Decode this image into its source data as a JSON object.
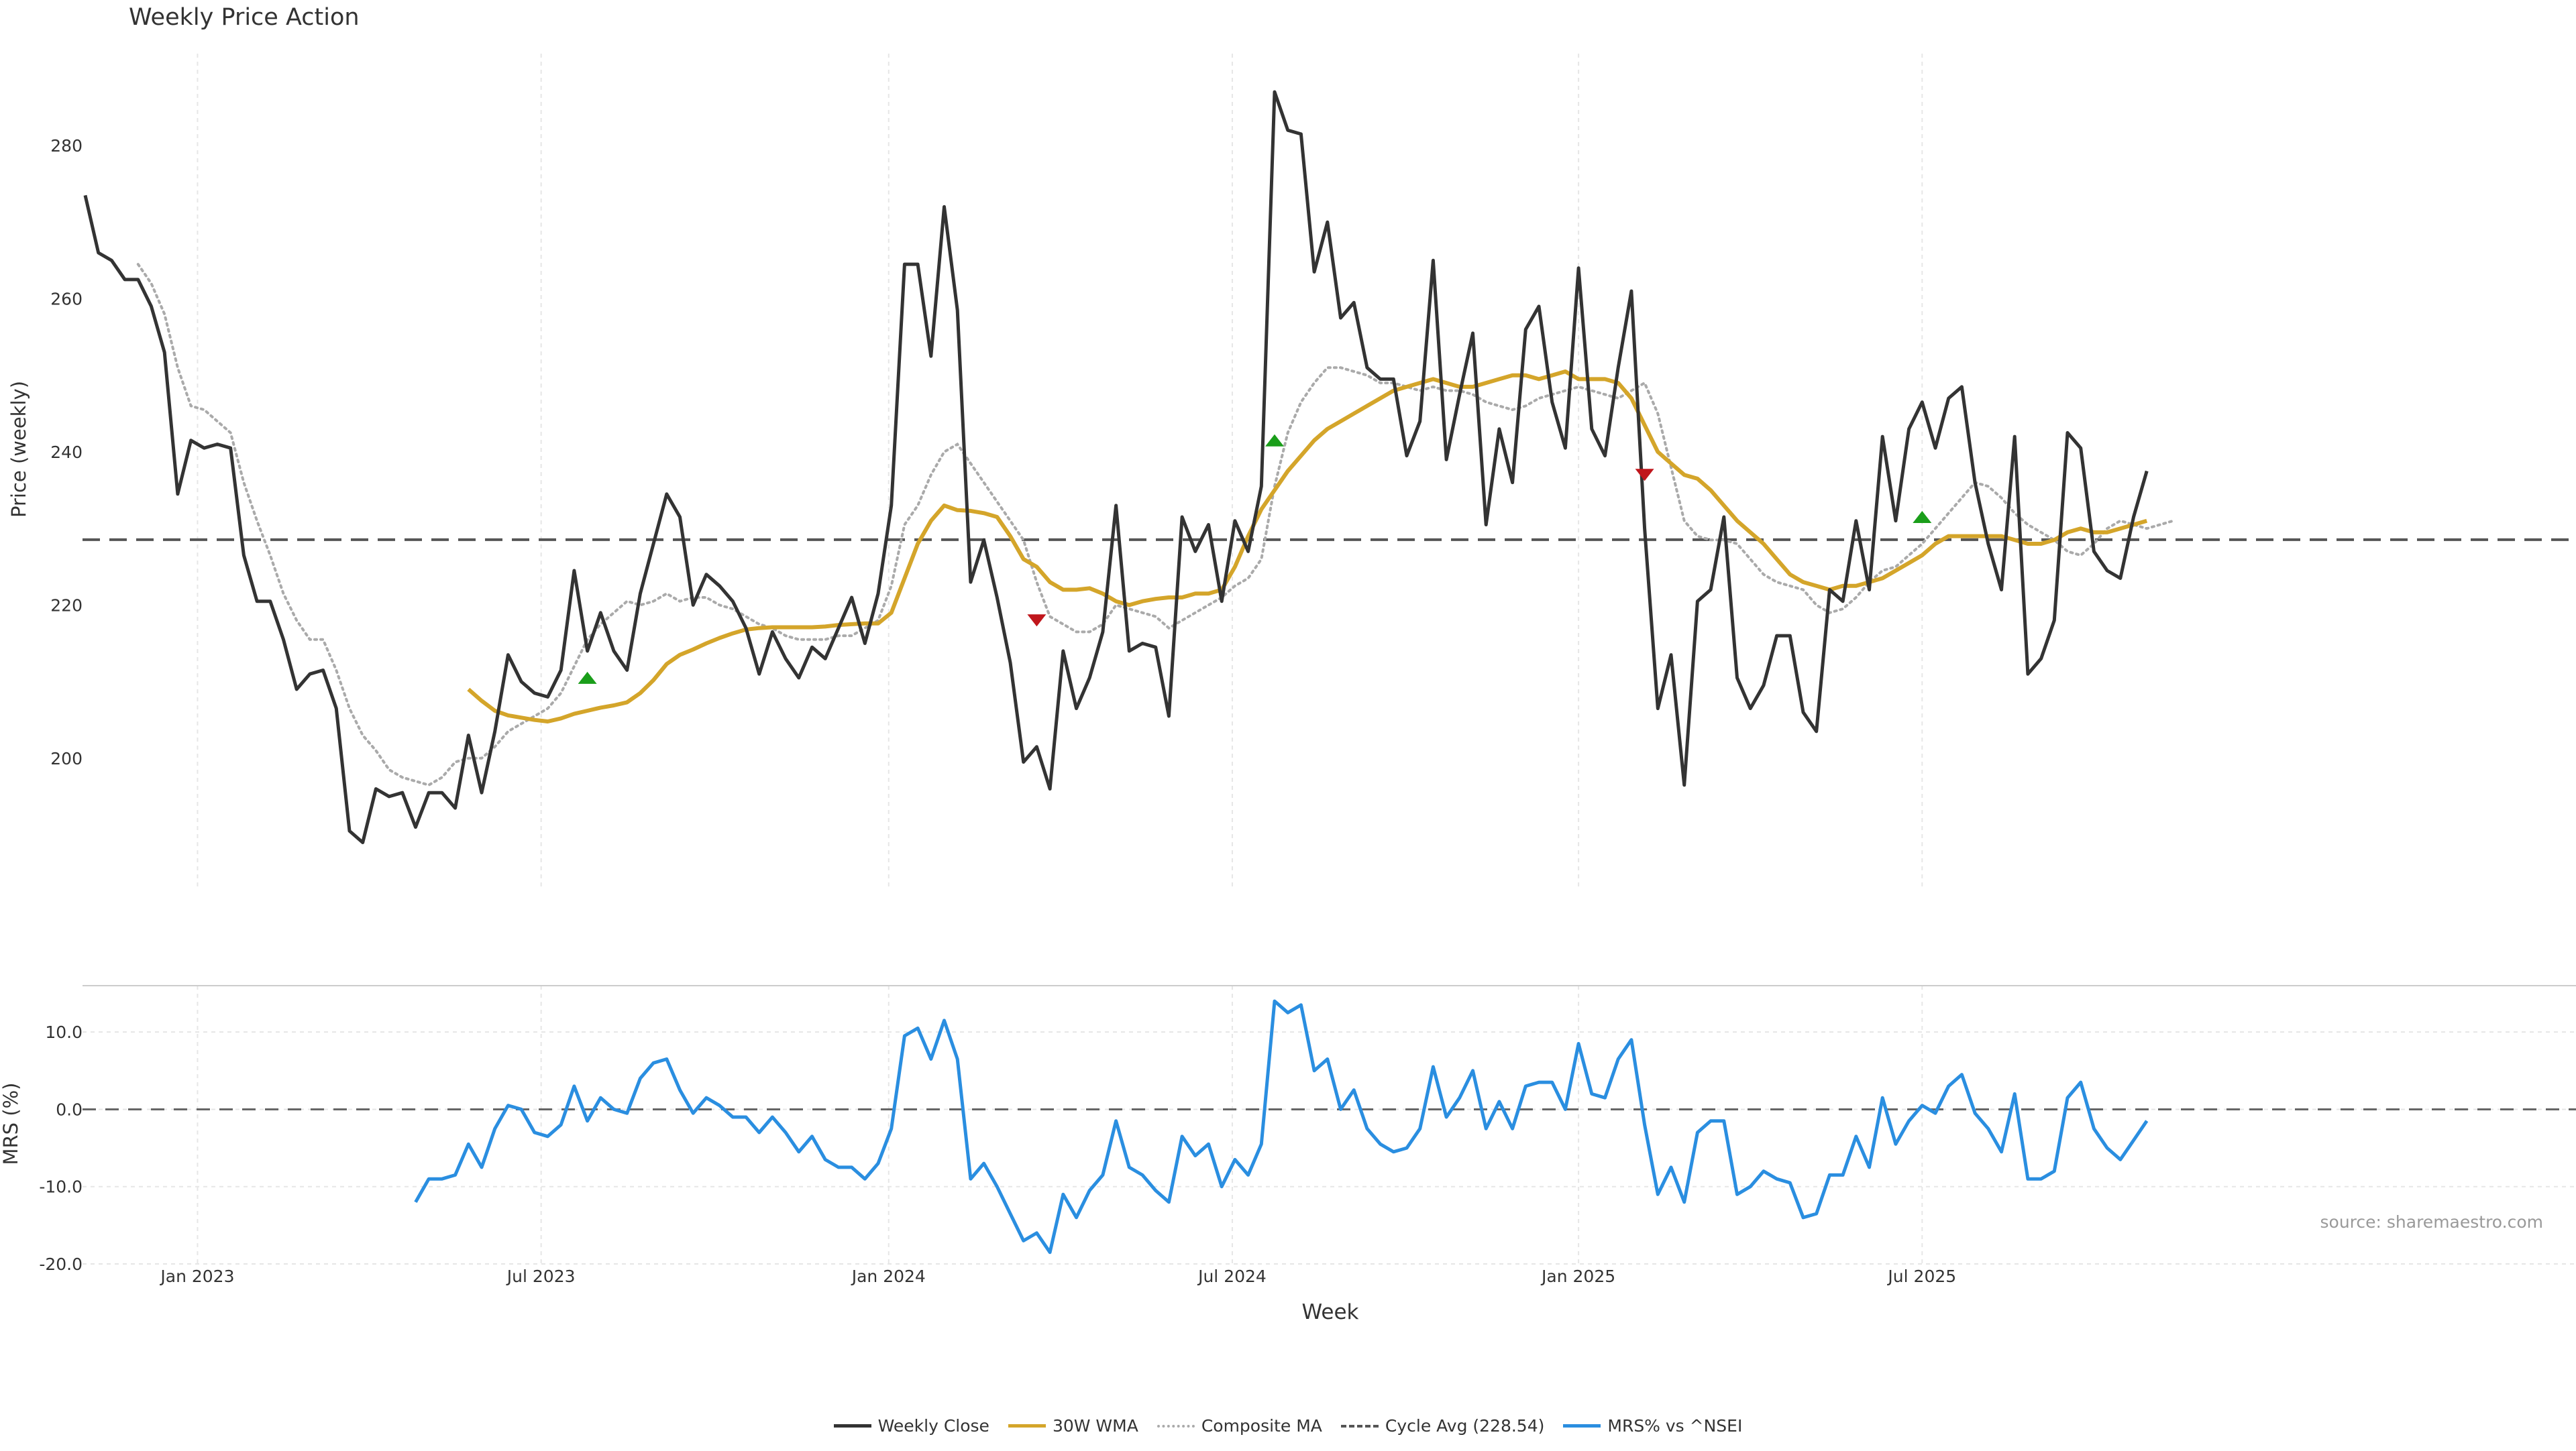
{
  "colors": {
    "close": "#333333",
    "wma": "#d4a52a",
    "composite": "#aaaaaa",
    "cycle": "#555555",
    "mrs": "#2a8ee0",
    "buy": "#1a9e1a",
    "sell": "#c0161c",
    "grid": "#e6e6e6"
  },
  "chart_data": [
    {
      "type": "line",
      "title": "Weekly Price Action",
      "ylabel": "Price (weekly)",
      "xlabel": "Week",
      "ylim": [
        183,
        292
      ],
      "yticks": [
        "200",
        "220",
        "240",
        "260",
        "280"
      ],
      "series": [
        {
          "name": "Weekly Close",
          "values": [
            273.5,
            266,
            265,
            262.5,
            262.5,
            259,
            253,
            234.5,
            241.5,
            240.5,
            241,
            240.5,
            226.5,
            220.5,
            220.5,
            215.5,
            209,
            211,
            211.5,
            206.5,
            190.5,
            189,
            196,
            195,
            195.5,
            191,
            195.5,
            195.5,
            193.5,
            203,
            195.5,
            203.5,
            213.5,
            210,
            208.5,
            208,
            211.5,
            224.5,
            214,
            219,
            214,
            211.5,
            221.5,
            228,
            234.5,
            231.5,
            220,
            224,
            222.5,
            220.5,
            217,
            211,
            216.5,
            213,
            210.5,
            214.5,
            213,
            217,
            221,
            215,
            221.5,
            233,
            264.5,
            264.5,
            252.5,
            272,
            258.5,
            223,
            228.5,
            221,
            212.5,
            199.5,
            201.5,
            196,
            214,
            206.5,
            210.5,
            216.5,
            233,
            214,
            215,
            214.5,
            205.5,
            231.5,
            227,
            230.5,
            220.5,
            231,
            227,
            235.5,
            287,
            282,
            281.5,
            263.5,
            270,
            257.5,
            259.5,
            251,
            249.5,
            249.5,
            239.5,
            244,
            265,
            239,
            247.5,
            255.5,
            230.5,
            243,
            236,
            256,
            259,
            246.5,
            240.5,
            264,
            243,
            239.5,
            251,
            261,
            230,
            206.5,
            213.5,
            196.5,
            220.5,
            222,
            231.5,
            210.5,
            206.5,
            209.5,
            216,
            216,
            206,
            203.5,
            222,
            220.5,
            231,
            222,
            242,
            231,
            243,
            246.5,
            240.5,
            247,
            248.5,
            236,
            228,
            222,
            242,
            211,
            213,
            218,
            242.5,
            240.5,
            227,
            224.5,
            223.5,
            231.5,
            237.5
          ]
        },
        {
          "name": "30W WMA",
          "values": [
            null,
            null,
            null,
            null,
            null,
            null,
            null,
            null,
            null,
            null,
            null,
            null,
            null,
            null,
            null,
            null,
            null,
            null,
            null,
            null,
            null,
            null,
            null,
            null,
            null,
            null,
            null,
            null,
            null,
            209,
            207.5,
            206.2,
            205.6,
            205.3,
            205,
            204.8,
            205.2,
            205.8,
            206.2,
            206.6,
            206.9,
            207.3,
            208.5,
            210.2,
            212.3,
            213.5,
            214.2,
            215,
            215.7,
            216.3,
            216.8,
            217,
            217.1,
            217.1,
            217.1,
            217.1,
            217.2,
            217.4,
            217.5,
            217.6,
            217.6,
            219,
            223.5,
            228,
            231,
            233,
            232.4,
            232.3,
            232,
            231.5,
            229,
            226,
            225,
            223,
            222,
            222,
            222.2,
            221.5,
            220.5,
            220,
            220.5,
            220.8,
            221,
            221,
            221.5,
            221.5,
            222,
            225,
            229,
            232.5,
            235,
            237.5,
            239.5,
            241.5,
            243,
            244,
            245,
            246,
            247,
            248,
            248.5,
            249,
            249.5,
            249,
            248.5,
            248.5,
            249,
            249.5,
            250,
            250,
            249.5,
            250,
            250.5,
            249.5,
            249.5,
            249.5,
            249,
            247,
            243.5,
            240,
            238.5,
            237,
            236.5,
            235,
            233,
            231,
            229.5,
            228,
            226,
            224,
            223,
            222.5,
            222,
            222.5,
            222.5,
            223,
            223.5,
            224.5,
            225.5,
            226.5,
            228,
            229,
            229,
            229,
            229,
            229,
            228.5,
            228,
            228,
            228.5,
            229.5,
            230,
            229.5,
            229.5,
            230,
            230.5,
            231
          ]
        },
        {
          "name": "Composite MA",
          "values": [
            null,
            null,
            null,
            null,
            264.5,
            262,
            258,
            251,
            246,
            245.5,
            244,
            242.5,
            236,
            231,
            226.5,
            221.5,
            218,
            215.5,
            215.5,
            211.5,
            206.5,
            203,
            201,
            198.5,
            197.5,
            197,
            196.5,
            197.5,
            199.5,
            200,
            200,
            201.5,
            203.5,
            204.5,
            205.5,
            206.5,
            208.5,
            212,
            215.5,
            217.5,
            219,
            220.5,
            220,
            220.5,
            221.5,
            220.5,
            221,
            221,
            220,
            219.5,
            218.5,
            217.5,
            217,
            216,
            215.5,
            215.5,
            215.5,
            216,
            216,
            217,
            218,
            222.5,
            230.5,
            233,
            237,
            240,
            241,
            238.5,
            236,
            233.5,
            231,
            228.5,
            223,
            218.5,
            217.5,
            216.5,
            216.5,
            217.5,
            220,
            219.5,
            219,
            218.5,
            217,
            218,
            219,
            220,
            221,
            222.5,
            223.5,
            226,
            235.5,
            242.5,
            246.5,
            249,
            251,
            251,
            250.5,
            250,
            249,
            249,
            248.5,
            248,
            248.5,
            248,
            248,
            247.5,
            246.5,
            246,
            245.5,
            246,
            247,
            247.5,
            248,
            248.5,
            248,
            247.5,
            247,
            248,
            249,
            245,
            238,
            231,
            229,
            228.5,
            228.5,
            228,
            226,
            224,
            223,
            222.5,
            222,
            220,
            219,
            219.5,
            221,
            223,
            224.5,
            225,
            226.5,
            228,
            230,
            232,
            234,
            236,
            235.5,
            234,
            232,
            230.5,
            229.5,
            228.5,
            227,
            226.5,
            228,
            230,
            231,
            230.5,
            230,
            230.5,
            231
          ]
        },
        {
          "name": "Cycle Avg (228.54)",
          "values": [
            228.54
          ]
        }
      ],
      "signals": [
        {
          "type": "buy",
          "week": 38,
          "value": 210.5
        },
        {
          "type": "sell",
          "week": 72,
          "value": 218
        },
        {
          "type": "buy",
          "week": 90,
          "value": 241.5
        },
        {
          "type": "sell",
          "week": 118,
          "value": 237
        },
        {
          "type": "buy",
          "week": 139,
          "value": 231.5
        }
      ],
      "x_tick_labels": [
        {
          "label": "Jan 2023",
          "week": 8.5
        },
        {
          "label": "Jul 2023",
          "week": 34.5
        },
        {
          "label": "Jan 2024",
          "week": 60.8
        },
        {
          "label": "Jul 2024",
          "week": 86.8
        },
        {
          "label": "Jan 2025",
          "week": 113
        },
        {
          "label": "Jul 2025",
          "week": 139
        }
      ]
    },
    {
      "type": "line",
      "ylabel": "MRS (%)",
      "ylim": [
        -20,
        16
      ],
      "yticks": [
        "10.0",
        "0.0",
        "-10.0",
        "-20.0"
      ],
      "series": [
        {
          "name": "MRS% vs ^NSEI",
          "values": [
            null,
            null,
            null,
            null,
            null,
            null,
            null,
            null,
            null,
            null,
            null,
            null,
            null,
            null,
            null,
            null,
            null,
            null,
            null,
            null,
            null,
            null,
            null,
            null,
            null,
            -12,
            -9,
            -9,
            -8.5,
            -4.5,
            -7.5,
            -2.5,
            0.5,
            0,
            -3,
            -3.5,
            -2,
            3,
            -1.5,
            1.5,
            0,
            -0.5,
            4,
            6,
            6.5,
            2.5,
            -0.5,
            1.5,
            0.5,
            -1,
            -1,
            -3,
            -1,
            -3,
            -5.5,
            -3.5,
            -6.5,
            -7.5,
            -7.5,
            -9,
            -7,
            -2.5,
            9.5,
            10.5,
            6.5,
            11.5,
            6.5,
            -9,
            -7,
            -10,
            -13.5,
            -17,
            -16,
            -18.5,
            -11,
            -14,
            -10.5,
            -8.5,
            -1.5,
            -7.5,
            -8.5,
            -10.5,
            -12,
            -3.5,
            -6,
            -4.5,
            -10,
            -6.5,
            -8.5,
            -4.5,
            14,
            12.5,
            13.5,
            5,
            6.5,
            0,
            2.5,
            -2.5,
            -4.5,
            -5.5,
            -5,
            -2.5,
            5.5,
            -1,
            1.5,
            5,
            -2.5,
            1,
            -2.5,
            3,
            3.5,
            3.5,
            0,
            8.5,
            2,
            1.5,
            6.5,
            9,
            -2,
            -11,
            -7.5,
            -12,
            -3,
            -1.5,
            -1.5,
            -11,
            -10,
            -8,
            -9,
            -9.5,
            -14,
            -13.5,
            -8.5,
            -8.5,
            -3.5,
            -7.5,
            1.5,
            -4.5,
            -1.5,
            0.5,
            -0.5,
            3,
            4.5,
            -0.5,
            -2.5,
            -5.5,
            2,
            -9,
            -9,
            -8,
            1.5,
            3.5,
            -2.5,
            -5,
            -6.5,
            -4,
            -1.5
          ]
        }
      ],
      "zero_line": 0
    }
  ],
  "legend": [
    "Weekly Close",
    "30W WMA",
    "Composite MA",
    "Cycle Avg (228.54)",
    "MRS% vs ^NSEI"
  ],
  "source_text": "source: sharemaestro.com"
}
